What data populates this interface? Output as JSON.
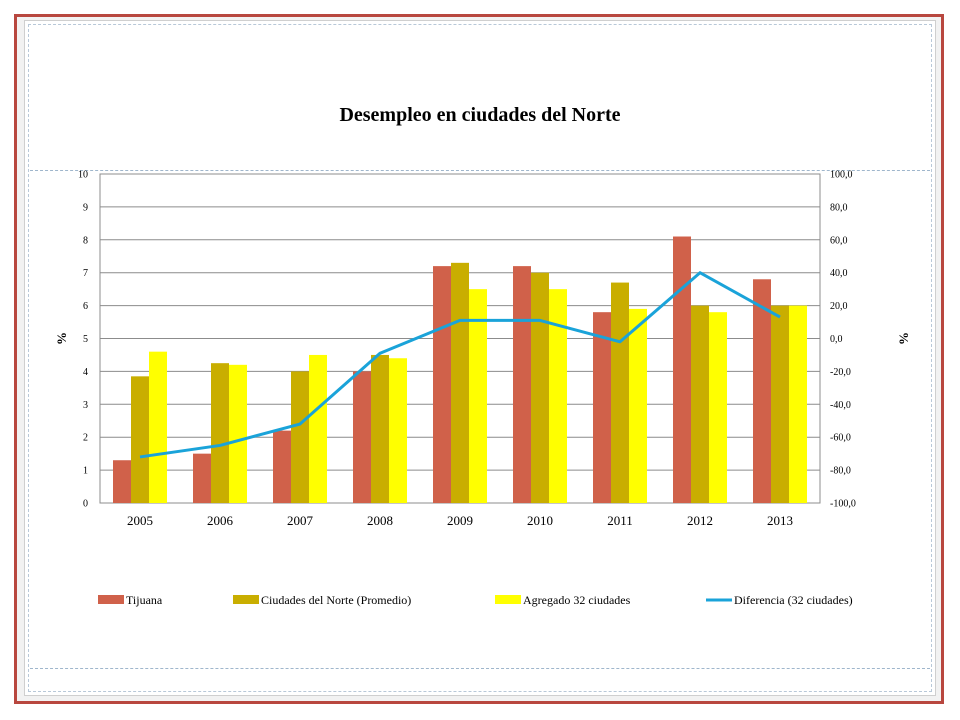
{
  "chart_data": {
    "type": "bar",
    "title": "Desempleo  en ciudades del Norte",
    "categories": [
      "2005",
      "2006",
      "2007",
      "2008",
      "2009",
      "2010",
      "2011",
      "2012",
      "2013"
    ],
    "series": [
      {
        "name": "Tijuana",
        "type": "bar",
        "axis": "left",
        "color": "#d0614a",
        "values": [
          1.3,
          1.5,
          2.2,
          4.0,
          7.2,
          7.2,
          5.8,
          8.1,
          6.8
        ]
      },
      {
        "name": "Ciudades del Norte (Promedio)",
        "type": "bar",
        "axis": "left",
        "color": "#c9ae00",
        "values": [
          3.85,
          4.25,
          4.0,
          4.5,
          7.3,
          7.0,
          6.7,
          6.0,
          6.0
        ]
      },
      {
        "name": "Agregado 32 ciudades",
        "type": "bar",
        "axis": "left",
        "color": "#ffff00",
        "values": [
          4.6,
          4.2,
          4.5,
          4.4,
          6.5,
          6.5,
          5.9,
          5.8,
          6.0
        ]
      },
      {
        "name": "Diferencia (32 ciudades)",
        "type": "line",
        "axis": "right",
        "color": "#1aa3d9",
        "values": [
          -72,
          -65,
          -52,
          -9,
          11,
          11,
          -2,
          40,
          13
        ]
      }
    ],
    "ylabel": "%",
    "y2label": "%",
    "ylim": [
      0,
      10
    ],
    "y2lim": [
      -100,
      100
    ],
    "yticks": [
      "0",
      "1",
      "2",
      "3",
      "4",
      "5",
      "6",
      "7",
      "8",
      "9",
      "10"
    ],
    "y2ticks": [
      "-100,0",
      "-80,0",
      "-60,0",
      "-40,0",
      "-20,0",
      "0,0",
      "20,0",
      "40,0",
      "60,0",
      "80,0",
      "100,0"
    ],
    "grid": true,
    "legend_position": "bottom"
  }
}
